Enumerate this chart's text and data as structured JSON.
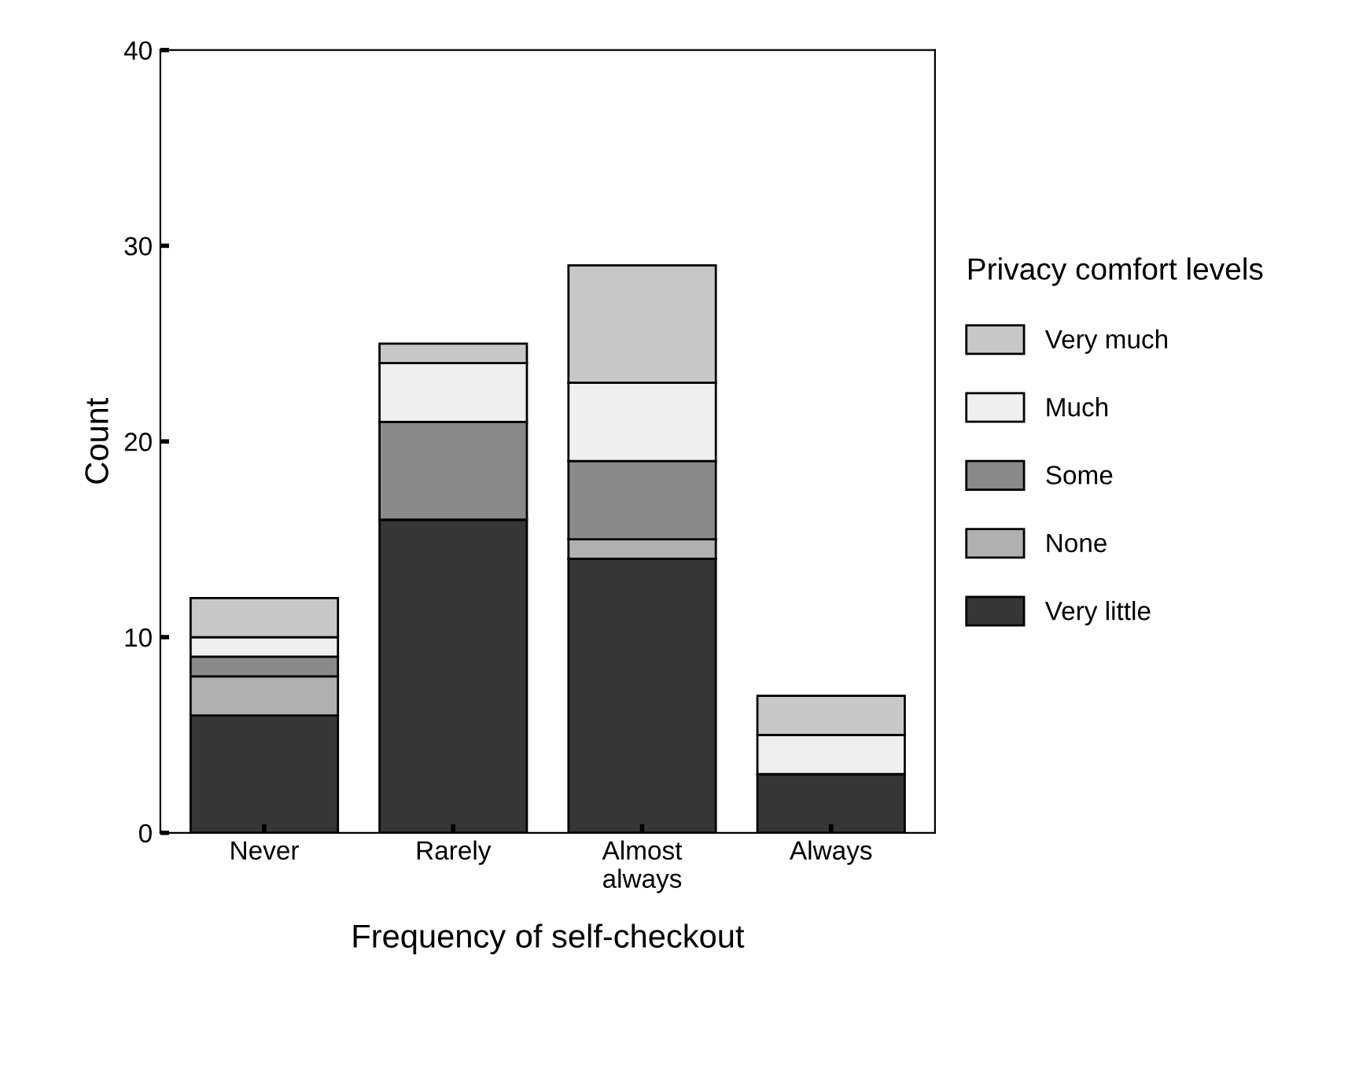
{
  "chart_data": {
    "type": "bar",
    "stacked": true,
    "xlabel": "Frequency of self-checkout",
    "ylabel": "Count",
    "legend_title": "Privacy comfort levels",
    "categories": [
      "Never",
      "Rarely",
      "Almost\nalways",
      "Always"
    ],
    "series": [
      {
        "name": "Very little",
        "color": "#363636",
        "values": [
          6,
          16,
          14,
          3
        ]
      },
      {
        "name": "None",
        "color": "#b0b0b0",
        "values": [
          2,
          0,
          1,
          0
        ]
      },
      {
        "name": "Some",
        "color": "#8a8a8a",
        "values": [
          1,
          5,
          4,
          0
        ]
      },
      {
        "name": "Much",
        "color": "#efefef",
        "values": [
          1,
          3,
          4,
          2
        ]
      },
      {
        "name": "Very much",
        "color": "#c8c8c8",
        "values": [
          2,
          1,
          6,
          2
        ]
      }
    ],
    "ylim": [
      0,
      40
    ],
    "yticks": [
      0,
      10,
      20,
      30,
      40
    ],
    "grid": false,
    "legend": "right"
  }
}
